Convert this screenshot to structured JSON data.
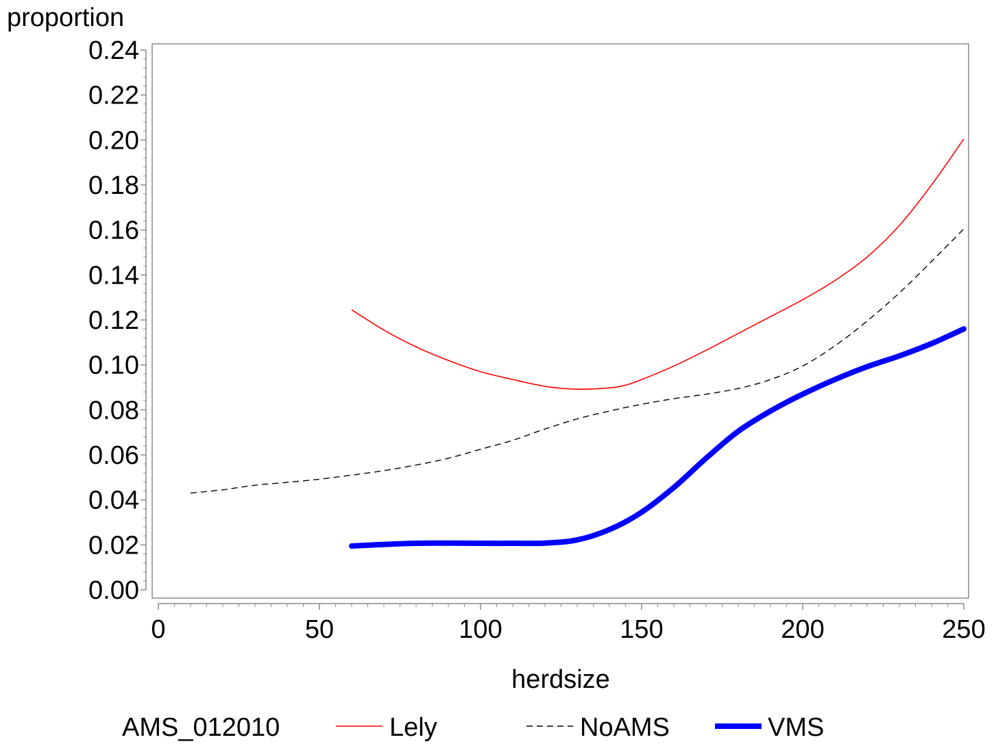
{
  "chart_data": {
    "type": "line",
    "ylabel": "proportion",
    "xlabel": "herdsize",
    "xlim": [
      0,
      250
    ],
    "ylim": [
      0,
      0.24
    ],
    "x_ticks": [
      "0",
      "50",
      "100",
      "150",
      "200",
      "250"
    ],
    "y_ticks": [
      "0.00",
      "0.02",
      "0.04",
      "0.06",
      "0.08",
      "0.10",
      "0.12",
      "0.14",
      "0.16",
      "0.18",
      "0.20",
      "0.22",
      "0.24"
    ],
    "grid": false,
    "legend": {
      "title": "AMS_012010",
      "position": "bottom"
    },
    "series": [
      {
        "name": "Lely",
        "color": "#ff0000",
        "style": "solid-thin",
        "points": [
          [
            60,
            0.1245
          ],
          [
            70,
            0.1155
          ],
          [
            80,
            0.108
          ],
          [
            90,
            0.102
          ],
          [
            100,
            0.097
          ],
          [
            110,
            0.0935
          ],
          [
            120,
            0.0905
          ],
          [
            130,
            0.0892
          ],
          [
            140,
            0.0898
          ],
          [
            145,
            0.091
          ],
          [
            150,
            0.0935
          ],
          [
            160,
            0.0995
          ],
          [
            170,
            0.1065
          ],
          [
            180,
            0.114
          ],
          [
            190,
            0.1215
          ],
          [
            200,
            0.129
          ],
          [
            210,
            0.1375
          ],
          [
            220,
            0.148
          ],
          [
            230,
            0.162
          ],
          [
            240,
            0.18
          ],
          [
            250,
            0.2005
          ]
        ]
      },
      {
        "name": "NoAMS",
        "color": "#000000",
        "style": "dashed",
        "points": [
          [
            10,
            0.043
          ],
          [
            20,
            0.0445
          ],
          [
            30,
            0.0465
          ],
          [
            40,
            0.0478
          ],
          [
            50,
            0.0492
          ],
          [
            60,
            0.051
          ],
          [
            70,
            0.053
          ],
          [
            80,
            0.0555
          ],
          [
            90,
            0.0585
          ],
          [
            100,
            0.0625
          ],
          [
            110,
            0.0665
          ],
          [
            120,
            0.0715
          ],
          [
            130,
            0.076
          ],
          [
            140,
            0.0795
          ],
          [
            150,
            0.0825
          ],
          [
            160,
            0.085
          ],
          [
            170,
            0.087
          ],
          [
            180,
            0.0895
          ],
          [
            190,
            0.0935
          ],
          [
            200,
            0.0995
          ],
          [
            210,
            0.1085
          ],
          [
            220,
            0.1195
          ],
          [
            230,
            0.132
          ],
          [
            240,
            0.146
          ],
          [
            250,
            0.1605
          ]
        ]
      },
      {
        "name": "VMS",
        "color": "#0000ff",
        "style": "solid-thick",
        "points": [
          [
            60,
            0.0195
          ],
          [
            70,
            0.0202
          ],
          [
            80,
            0.0207
          ],
          [
            90,
            0.0208
          ],
          [
            100,
            0.0207
          ],
          [
            110,
            0.0207
          ],
          [
            120,
            0.0208
          ],
          [
            130,
            0.0222
          ],
          [
            140,
            0.0268
          ],
          [
            150,
            0.0345
          ],
          [
            160,
            0.0455
          ],
          [
            170,
            0.0585
          ],
          [
            180,
            0.0705
          ],
          [
            190,
            0.0795
          ],
          [
            200,
            0.087
          ],
          [
            210,
            0.0935
          ],
          [
            220,
            0.0992
          ],
          [
            230,
            0.104
          ],
          [
            240,
            0.1095
          ],
          [
            250,
            0.116
          ]
        ]
      }
    ]
  }
}
